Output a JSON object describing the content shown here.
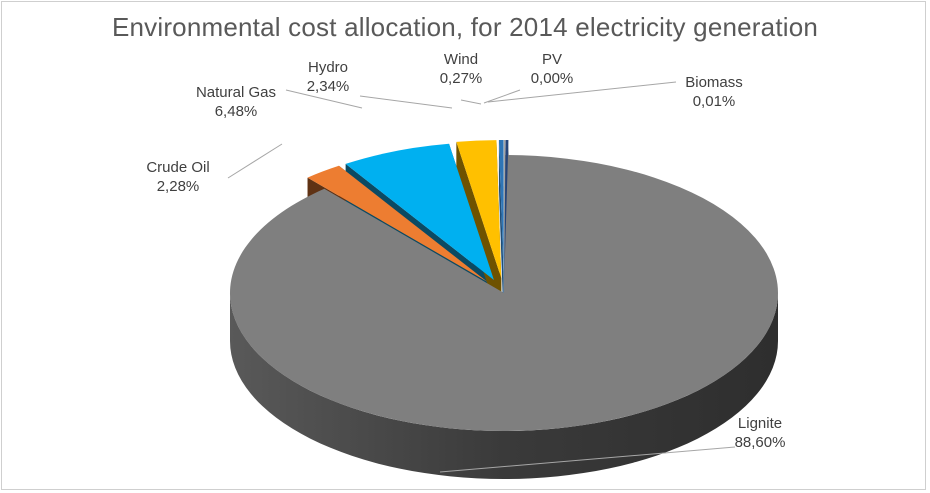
{
  "chart_data": {
    "type": "pie",
    "title": "Environmental cost allocation, for 2014 electricity generation",
    "slices": [
      {
        "name": "Lignite",
        "value": 88.6,
        "label": "88,60%",
        "color": "#7f7f7f",
        "side": "#404040"
      },
      {
        "name": "Crude Oil",
        "value": 2.28,
        "label": "2,28%",
        "color": "#ed7d31",
        "side": "#5f3214"
      },
      {
        "name": "Natural Gas",
        "value": 6.48,
        "label": "6,48%",
        "color": "#00b0f0",
        "side": "#0b4a63"
      },
      {
        "name": "Hydro",
        "value": 2.34,
        "label": "2,34%",
        "color": "#ffc000",
        "side": "#6e5200"
      },
      {
        "name": "Wind",
        "value": 0.27,
        "label": "0,27%",
        "color": "#2e75b6",
        "side": "#1f4e79"
      },
      {
        "name": "PV",
        "value": 0.0,
        "label": "0,00%",
        "color": "#a5a5a5",
        "side": "#555555"
      },
      {
        "name": "Biomass",
        "value": 0.01,
        "label": "0,01%",
        "color": "#264478",
        "side": "#152a4c"
      }
    ],
    "legend": "none",
    "data_labels": "outside with leader lines"
  }
}
